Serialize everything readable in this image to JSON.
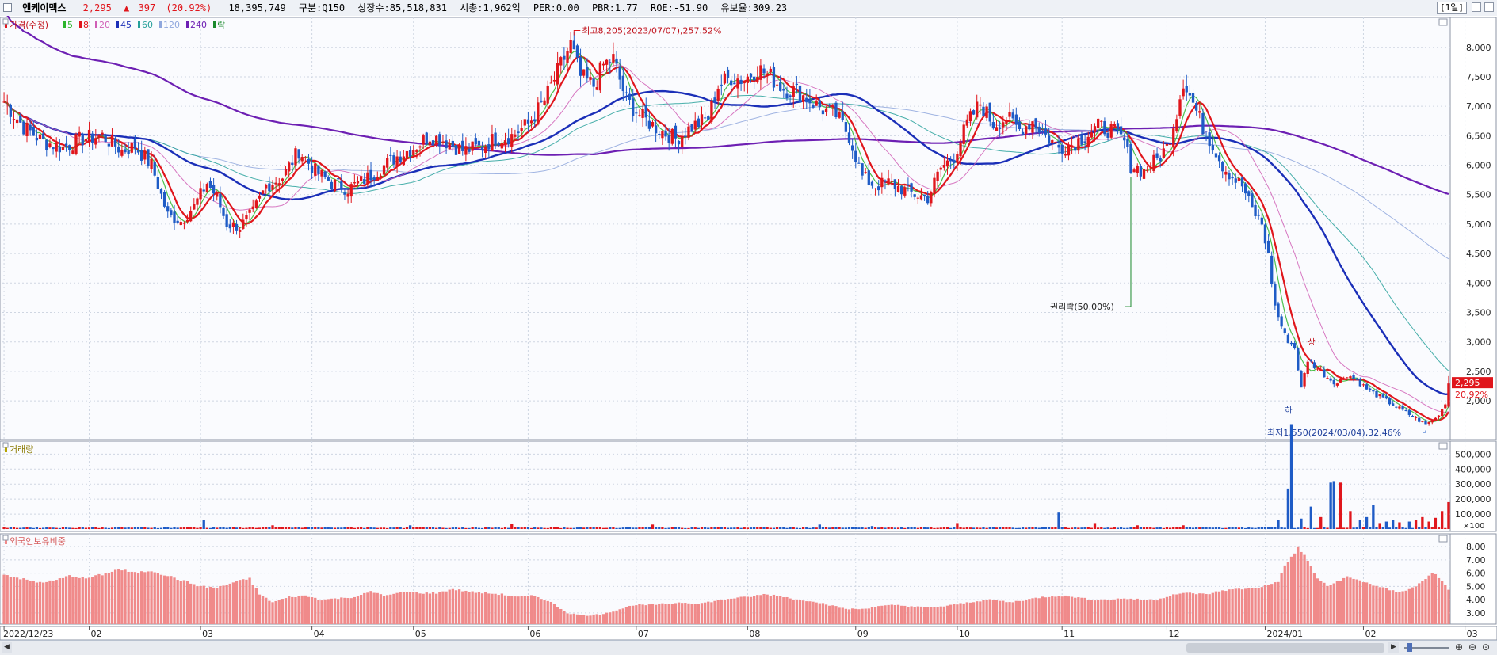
{
  "header": {
    "name": "엔케이맥스",
    "price": "2,295",
    "change_arrow": "▲",
    "change": "397",
    "change_pct": "(20.92%)",
    "volume": "18,395,749",
    "market": "구분:Q150",
    "shares": "상장수:85,518,831",
    "mcap": "시총:1,962억",
    "per": "PER:0.00",
    "pbr": "PBR:1.77",
    "roe": "ROE:-51.90",
    "float_ratio": "유보율:309.23",
    "period": "[1일]"
  },
  "legend": {
    "price_label": "가격(수정)",
    "ma": [
      {
        "label": "5",
        "color": "#2bb52b"
      },
      {
        "label": "8",
        "color": "#e0161c"
      },
      {
        "label": "20",
        "color": "#d05fb6"
      },
      {
        "label": "45",
        "color": "#1b2fb8"
      },
      {
        "label": "60",
        "color": "#25a09a"
      },
      {
        "label": "120",
        "color": "#8fa7dd"
      },
      {
        "label": "240",
        "color": "#6d1fb3"
      }
    ],
    "rights_label": "락",
    "volume_label": "거래량",
    "foreign_label": "외국인보유비중"
  },
  "annotations": {
    "high": "최고8,205(2023/07/07),257.52%",
    "low": "최저1,550(2024/03/04),32.46%",
    "rights": "권리락(50.00%)",
    "mark_ha": "하",
    "mark_sang": "상"
  },
  "price_tag": {
    "price": "2,295",
    "pct": "20.92%"
  },
  "colors": {
    "up": "#e0161c",
    "down": "#1e5bc6",
    "foreign_bar": "#f08a8a",
    "grid": "#cfd6e2"
  },
  "chart_data": [
    {
      "type": "candlestick",
      "name": "price",
      "y_ticks": [
        "8,000",
        "7,500",
        "7,000",
        "6,500",
        "6,000",
        "5,500",
        "5,000",
        "4,500",
        "4,000",
        "3,500",
        "3,000",
        "2,500",
        "2,000"
      ],
      "y_range": [
        1550,
        8205
      ],
      "x_tick_labels": [
        "2022/12/23",
        "02",
        "03",
        "04",
        "05",
        "06",
        "07",
        "08",
        "09",
        "10",
        "11",
        "12",
        "2024/01",
        "02",
        "03"
      ],
      "x_tick_days": [
        0,
        26,
        60,
        94,
        125,
        160,
        193,
        227,
        260,
        291,
        323,
        355,
        385,
        415,
        446
      ],
      "keypoints": [
        [
          0,
          7080
        ],
        [
          6,
          6650
        ],
        [
          12,
          6400
        ],
        [
          18,
          6300
        ],
        [
          24,
          6450
        ],
        [
          30,
          6500
        ],
        [
          36,
          6250
        ],
        [
          40,
          6320
        ],
        [
          45,
          6000
        ],
        [
          50,
          5150
        ],
        [
          54,
          5050
        ],
        [
          58,
          5300
        ],
        [
          62,
          5700
        ],
        [
          65,
          5450
        ],
        [
          68,
          5000
        ],
        [
          72,
          4950
        ],
        [
          76,
          5200
        ],
        [
          80,
          5650
        ],
        [
          85,
          5800
        ],
        [
          90,
          6250
        ],
        [
          95,
          5900
        ],
        [
          100,
          5700
        ],
        [
          105,
          5600
        ],
        [
          110,
          5750
        ],
        [
          115,
          5950
        ],
        [
          120,
          6150
        ],
        [
          125,
          6300
        ],
        [
          130,
          6500
        ],
        [
          135,
          6400
        ],
        [
          140,
          6250
        ],
        [
          145,
          6300
        ],
        [
          150,
          6450
        ],
        [
          155,
          6500
        ],
        [
          160,
          6700
        ],
        [
          165,
          7100
        ],
        [
          170,
          7700
        ],
        [
          173,
          8050
        ],
        [
          176,
          7500
        ],
        [
          180,
          7350
        ],
        [
          183,
          7700
        ],
        [
          186,
          7800
        ],
        [
          190,
          7100
        ],
        [
          195,
          6800
        ],
        [
          200,
          6600
        ],
        [
          205,
          6450
        ],
        [
          210,
          6650
        ],
        [
          215,
          6800
        ],
        [
          218,
          7350
        ],
        [
          222,
          7500
        ],
        [
          226,
          7450
        ],
        [
          230,
          7650
        ],
        [
          234,
          7500
        ],
        [
          238,
          7300
        ],
        [
          242,
          7250
        ],
        [
          246,
          7100
        ],
        [
          250,
          6950
        ],
        [
          254,
          6850
        ],
        [
          258,
          6500
        ],
        [
          262,
          5800
        ],
        [
          266,
          5650
        ],
        [
          270,
          5700
        ],
        [
          274,
          5600
        ],
        [
          278,
          5500
        ],
        [
          282,
          5450
        ],
        [
          286,
          5950
        ],
        [
          290,
          6150
        ],
        [
          294,
          6700
        ],
        [
          298,
          7050
        ],
        [
          302,
          6700
        ],
        [
          306,
          6800
        ],
        [
          310,
          6600
        ],
        [
          314,
          6750
        ],
        [
          318,
          6500
        ],
        [
          322,
          6300
        ],
        [
          326,
          6350
        ],
        [
          330,
          6500
        ],
        [
          334,
          6650
        ],
        [
          338,
          6600
        ],
        [
          342,
          6400
        ],
        [
          344,
          6000
        ],
        [
          348,
          5900
        ],
        [
          352,
          6100
        ],
        [
          355,
          6300
        ],
        [
          358,
          6900
        ],
        [
          360,
          7450
        ],
        [
          363,
          7050
        ],
        [
          366,
          6650
        ],
        [
          369,
          6350
        ],
        [
          372,
          6000
        ],
        [
          375,
          5800
        ],
        [
          378,
          5650
        ],
        [
          381,
          5250
        ],
        [
          384,
          5000
        ],
        [
          386,
          4450
        ],
        [
          388,
          3600
        ],
        [
          391,
          3100
        ],
        [
          394,
          2900
        ],
        [
          396,
          2200
        ],
        [
          398,
          2700
        ],
        [
          401,
          2550
        ],
        [
          404,
          2400
        ],
        [
          407,
          2300
        ],
        [
          410,
          2450
        ],
        [
          413,
          2350
        ],
        [
          416,
          2200
        ],
        [
          419,
          2100
        ],
        [
          422,
          2000
        ],
        [
          425,
          1900
        ],
        [
          428,
          1800
        ],
        [
          431,
          1700
        ],
        [
          434,
          1600
        ],
        [
          437,
          1700
        ],
        [
          440,
          1950
        ],
        [
          441,
          2295
        ]
      ]
    },
    {
      "type": "bar",
      "name": "volume",
      "y_ticks": [
        "500,000",
        "400,000",
        "300,000",
        "200,000",
        "100,000",
        "×100"
      ],
      "spikes": [
        [
          61,
          60
        ],
        [
          82,
          25
        ],
        [
          124,
          25
        ],
        [
          155,
          35
        ],
        [
          198,
          30
        ],
        [
          249,
          30
        ],
        [
          265,
          20
        ],
        [
          291,
          40
        ],
        [
          322,
          110
        ],
        [
          333,
          40
        ],
        [
          346,
          25
        ],
        [
          360,
          25
        ],
        [
          389,
          60
        ],
        [
          392,
          270
        ],
        [
          393,
          700
        ],
        [
          396,
          70
        ],
        [
          399,
          150
        ],
        [
          402,
          80
        ],
        [
          405,
          310
        ],
        [
          406,
          320
        ],
        [
          408,
          310
        ],
        [
          411,
          120
        ],
        [
          414,
          60
        ],
        [
          416,
          80
        ],
        [
          418,
          160
        ],
        [
          420,
          40
        ],
        [
          422,
          50
        ],
        [
          424,
          60
        ],
        [
          426,
          45
        ],
        [
          429,
          50
        ],
        [
          431,
          60
        ],
        [
          433,
          80
        ],
        [
          435,
          50
        ],
        [
          437,
          75
        ],
        [
          439,
          120
        ],
        [
          441,
          180
        ]
      ]
    },
    {
      "type": "bar",
      "name": "foreign_holding_pct",
      "y_ticks": [
        "8.00",
        "7.00",
        "6.00",
        "5.00",
        "4.00",
        "3.00"
      ],
      "keypoints": [
        [
          0,
          5.9
        ],
        [
          5,
          5.6
        ],
        [
          10,
          5.3
        ],
        [
          15,
          5.4
        ],
        [
          20,
          5.8
        ],
        [
          25,
          5.6
        ],
        [
          30,
          5.9
        ],
        [
          35,
          6.3
        ],
        [
          40,
          6.0
        ],
        [
          45,
          6.2
        ],
        [
          50,
          5.8
        ],
        [
          55,
          5.4
        ],
        [
          60,
          5.0
        ],
        [
          65,
          4.9
        ],
        [
          70,
          5.3
        ],
        [
          75,
          5.6
        ],
        [
          78,
          4.4
        ],
        [
          82,
          3.8
        ],
        [
          87,
          4.2
        ],
        [
          92,
          4.3
        ],
        [
          97,
          4.0
        ],
        [
          102,
          4.1
        ],
        [
          107,
          4.2
        ],
        [
          112,
          4.6
        ],
        [
          117,
          4.3
        ],
        [
          122,
          4.6
        ],
        [
          127,
          4.5
        ],
        [
          132,
          4.5
        ],
        [
          137,
          4.8
        ],
        [
          142,
          4.6
        ],
        [
          147,
          4.5
        ],
        [
          152,
          4.4
        ],
        [
          157,
          4.2
        ],
        [
          162,
          4.3
        ],
        [
          167,
          3.8
        ],
        [
          172,
          3.0
        ],
        [
          177,
          2.8
        ],
        [
          182,
          2.9
        ],
        [
          187,
          3.2
        ],
        [
          192,
          3.6
        ],
        [
          197,
          3.6
        ],
        [
          202,
          3.7
        ],
        [
          207,
          3.8
        ],
        [
          212,
          3.7
        ],
        [
          217,
          3.9
        ],
        [
          222,
          4.1
        ],
        [
          227,
          4.2
        ],
        [
          232,
          4.4
        ],
        [
          237,
          4.3
        ],
        [
          242,
          4.0
        ],
        [
          247,
          3.9
        ],
        [
          252,
          3.6
        ],
        [
          257,
          3.3
        ],
        [
          262,
          3.3
        ],
        [
          267,
          3.5
        ],
        [
          272,
          3.6
        ],
        [
          277,
          3.5
        ],
        [
          282,
          3.4
        ],
        [
          287,
          3.5
        ],
        [
          292,
          3.7
        ],
        [
          297,
          3.9
        ],
        [
          302,
          4.0
        ],
        [
          307,
          3.8
        ],
        [
          312,
          4.0
        ],
        [
          317,
          4.2
        ],
        [
          322,
          4.3
        ],
        [
          327,
          4.2
        ],
        [
          332,
          4.0
        ],
        [
          337,
          4.0
        ],
        [
          342,
          4.1
        ],
        [
          347,
          4.0
        ],
        [
          352,
          4.0
        ],
        [
          357,
          4.4
        ],
        [
          362,
          4.5
        ],
        [
          367,
          4.4
        ],
        [
          372,
          4.7
        ],
        [
          377,
          4.8
        ],
        [
          382,
          4.9
        ],
        [
          386,
          5.1
        ],
        [
          389,
          5.4
        ],
        [
          391,
          6.5
        ],
        [
          393,
          7.2
        ],
        [
          395,
          7.9
        ],
        [
          397,
          7.3
        ],
        [
          399,
          6.5
        ],
        [
          401,
          5.6
        ],
        [
          404,
          5.0
        ],
        [
          407,
          5.4
        ],
        [
          410,
          5.7
        ],
        [
          413,
          5.5
        ],
        [
          416,
          5.3
        ],
        [
          419,
          5.0
        ],
        [
          422,
          4.8
        ],
        [
          425,
          4.6
        ],
        [
          428,
          4.7
        ],
        [
          431,
          5.0
        ],
        [
          434,
          5.6
        ],
        [
          436,
          6.1
        ],
        [
          438,
          5.6
        ],
        [
          441,
          4.8
        ]
      ]
    }
  ]
}
